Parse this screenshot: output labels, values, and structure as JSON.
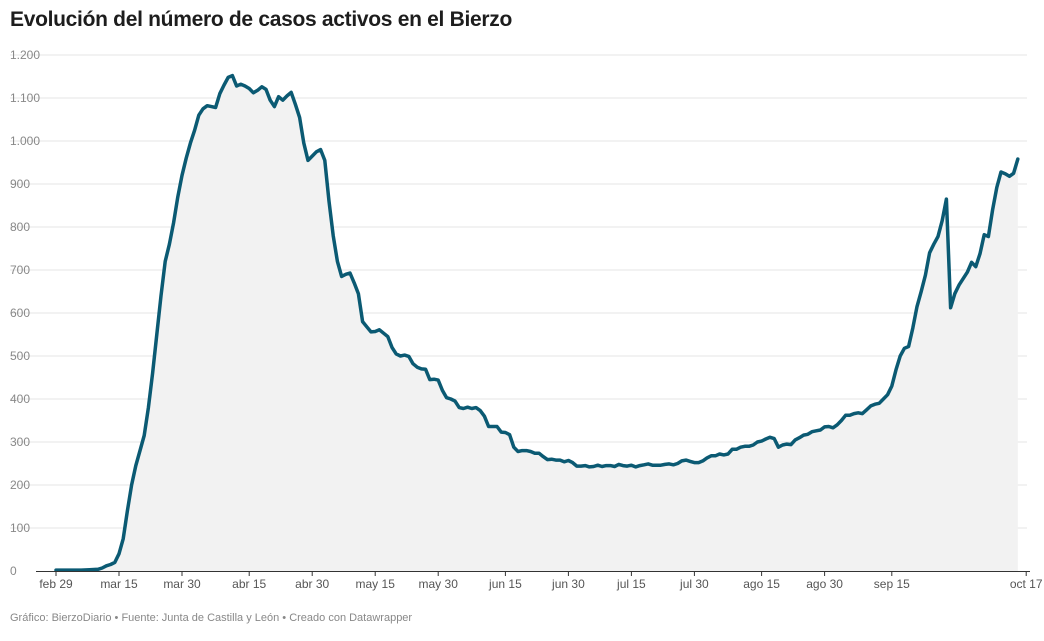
{
  "chart_data": {
    "type": "area",
    "title": "Evolución del número de casos activos en el Bierzo",
    "xlabel": "",
    "ylabel": "",
    "ylim": [
      0,
      1200
    ],
    "y_ticks": [
      0,
      100,
      200,
      300,
      400,
      500,
      600,
      700,
      800,
      900,
      1000,
      1100,
      1200
    ],
    "y_tick_labels": [
      "0",
      "100",
      "200",
      "300",
      "400",
      "500",
      "600",
      "700",
      "800",
      "900",
      "1.000",
      "1.100",
      "1.200"
    ],
    "x_ticks": [
      {
        "day": 0,
        "label": "feb 29"
      },
      {
        "day": 15,
        "label": "mar 15"
      },
      {
        "day": 30,
        "label": "mar 30"
      },
      {
        "day": 46,
        "label": "abr 15"
      },
      {
        "day": 61,
        "label": "abr 30"
      },
      {
        "day": 76,
        "label": "may 15"
      },
      {
        "day": 91,
        "label": "may 30"
      },
      {
        "day": 107,
        "label": "jun 15"
      },
      {
        "day": 122,
        "label": "jun 30"
      },
      {
        "day": 137,
        "label": "jul 15"
      },
      {
        "day": 152,
        "label": "jul 30"
      },
      {
        "day": 168,
        "label": "ago 15"
      },
      {
        "day": 183,
        "label": "ago 30"
      },
      {
        "day": 199,
        "label": "sep 15"
      },
      {
        "day": 231,
        "label": "oct 17"
      }
    ],
    "grid": true,
    "line_color": "#0b5a73",
    "area_color": "#f2f2f2",
    "series": [
      {
        "points": [
          [
            0,
            2
          ],
          [
            2,
            2
          ],
          [
            4,
            2
          ],
          [
            6,
            2
          ],
          [
            8,
            3
          ],
          [
            10,
            4
          ],
          [
            11,
            7
          ],
          [
            12,
            12
          ],
          [
            13,
            15
          ],
          [
            14,
            20
          ],
          [
            15,
            40
          ],
          [
            16,
            75
          ],
          [
            17,
            140
          ],
          [
            18,
            200
          ],
          [
            19,
            245
          ],
          [
            20,
            280
          ],
          [
            21,
            315
          ],
          [
            22,
            380
          ],
          [
            23,
            460
          ],
          [
            24,
            550
          ],
          [
            25,
            640
          ],
          [
            26,
            720
          ],
          [
            27,
            760
          ],
          [
            28,
            810
          ],
          [
            29,
            870
          ],
          [
            30,
            920
          ],
          [
            31,
            960
          ],
          [
            32,
            995
          ],
          [
            33,
            1025
          ],
          [
            34,
            1060
          ],
          [
            35,
            1075
          ],
          [
            36,
            1082
          ],
          [
            37,
            1080
          ],
          [
            38,
            1078
          ],
          [
            39,
            1110
          ],
          [
            40,
            1130
          ],
          [
            41,
            1148
          ],
          [
            42,
            1152
          ],
          [
            43,
            1128
          ],
          [
            44,
            1132
          ],
          [
            45,
            1128
          ],
          [
            46,
            1122
          ],
          [
            47,
            1112
          ],
          [
            48,
            1118
          ],
          [
            49,
            1126
          ],
          [
            50,
            1120
          ],
          [
            51,
            1095
          ],
          [
            52,
            1080
          ],
          [
            53,
            1103
          ],
          [
            54,
            1095
          ],
          [
            55,
            1105
          ],
          [
            56,
            1113
          ],
          [
            57,
            1085
          ],
          [
            58,
            1055
          ],
          [
            59,
            995
          ],
          [
            60,
            955
          ],
          [
            61,
            965
          ],
          [
            62,
            975
          ],
          [
            63,
            980
          ],
          [
            64,
            955
          ],
          [
            65,
            860
          ],
          [
            66,
            780
          ],
          [
            67,
            720
          ],
          [
            68,
            685
          ],
          [
            69,
            690
          ],
          [
            70,
            693
          ],
          [
            71,
            670
          ],
          [
            72,
            645
          ],
          [
            73,
            580
          ],
          [
            74,
            568
          ],
          [
            75,
            556
          ],
          [
            76,
            557
          ],
          [
            77,
            561
          ],
          [
            78,
            553
          ],
          [
            79,
            545
          ],
          [
            80,
            520
          ],
          [
            81,
            505
          ],
          [
            82,
            500
          ],
          [
            83,
            502
          ],
          [
            84,
            499
          ],
          [
            85,
            482
          ],
          [
            86,
            474
          ],
          [
            87,
            470
          ],
          [
            88,
            469
          ],
          [
            89,
            445
          ],
          [
            90,
            446
          ],
          [
            91,
            444
          ],
          [
            92,
            420
          ],
          [
            93,
            403
          ],
          [
            94,
            400
          ],
          [
            95,
            395
          ],
          [
            96,
            380
          ],
          [
            97,
            378
          ],
          [
            98,
            381
          ],
          [
            99,
            378
          ],
          [
            100,
            380
          ],
          [
            101,
            373
          ],
          [
            102,
            360
          ],
          [
            103,
            336
          ],
          [
            104,
            336
          ],
          [
            105,
            336
          ],
          [
            106,
            323
          ],
          [
            107,
            322
          ],
          [
            108,
            317
          ],
          [
            109,
            288
          ],
          [
            110,
            278
          ],
          [
            111,
            280
          ],
          [
            112,
            280
          ],
          [
            113,
            278
          ],
          [
            114,
            274
          ],
          [
            115,
            274
          ],
          [
            116,
            266
          ],
          [
            117,
            259
          ],
          [
            118,
            260
          ],
          [
            119,
            258
          ],
          [
            120,
            258
          ],
          [
            121,
            254
          ],
          [
            122,
            257
          ],
          [
            123,
            252
          ],
          [
            124,
            244
          ],
          [
            125,
            244
          ],
          [
            126,
            245
          ],
          [
            127,
            242
          ],
          [
            128,
            243
          ],
          [
            129,
            246
          ],
          [
            130,
            243
          ],
          [
            131,
            245
          ],
          [
            132,
            245
          ],
          [
            133,
            243
          ],
          [
            134,
            248
          ],
          [
            135,
            245
          ],
          [
            136,
            244
          ],
          [
            137,
            246
          ],
          [
            138,
            242
          ],
          [
            139,
            245
          ],
          [
            140,
            247
          ],
          [
            141,
            249
          ],
          [
            142,
            246
          ],
          [
            143,
            246
          ],
          [
            144,
            246
          ],
          [
            145,
            248
          ],
          [
            146,
            249
          ],
          [
            147,
            247
          ],
          [
            148,
            250
          ],
          [
            149,
            256
          ],
          [
            150,
            258
          ],
          [
            151,
            255
          ],
          [
            152,
            252
          ],
          [
            153,
            252
          ],
          [
            154,
            256
          ],
          [
            155,
            263
          ],
          [
            156,
            268
          ],
          [
            157,
            268
          ],
          [
            158,
            272
          ],
          [
            159,
            270
          ],
          [
            160,
            272
          ],
          [
            161,
            283
          ],
          [
            162,
            283
          ],
          [
            163,
            288
          ],
          [
            164,
            290
          ],
          [
            165,
            290
          ],
          [
            166,
            293
          ],
          [
            167,
            300
          ],
          [
            168,
            302
          ],
          [
            169,
            307
          ],
          [
            170,
            311
          ],
          [
            171,
            308
          ],
          [
            172,
            288
          ],
          [
            173,
            293
          ],
          [
            174,
            295
          ],
          [
            175,
            294
          ],
          [
            176,
            305
          ],
          [
            177,
            310
          ],
          [
            178,
            316
          ],
          [
            179,
            318
          ],
          [
            180,
            324
          ],
          [
            181,
            326
          ],
          [
            182,
            328
          ],
          [
            183,
            335
          ],
          [
            184,
            336
          ],
          [
            185,
            333
          ],
          [
            186,
            340
          ],
          [
            187,
            350
          ],
          [
            188,
            362
          ],
          [
            189,
            362
          ],
          [
            190,
            366
          ],
          [
            191,
            368
          ],
          [
            192,
            366
          ],
          [
            193,
            375
          ],
          [
            194,
            384
          ],
          [
            195,
            388
          ],
          [
            196,
            390
          ],
          [
            197,
            400
          ],
          [
            198,
            410
          ],
          [
            199,
            430
          ],
          [
            200,
            468
          ],
          [
            201,
            500
          ],
          [
            202,
            518
          ],
          [
            203,
            522
          ],
          [
            204,
            565
          ],
          [
            205,
            615
          ],
          [
            206,
            650
          ],
          [
            207,
            688
          ],
          [
            208,
            740
          ],
          [
            209,
            760
          ],
          [
            210,
            778
          ],
          [
            211,
            815
          ],
          [
            212,
            865
          ],
          [
            213,
            612
          ],
          [
            214,
            645
          ],
          [
            215,
            665
          ],
          [
            216,
            680
          ],
          [
            217,
            695
          ],
          [
            218,
            718
          ],
          [
            219,
            708
          ],
          [
            220,
            738
          ],
          [
            221,
            782
          ],
          [
            222,
            778
          ],
          [
            223,
            840
          ],
          [
            224,
            892
          ],
          [
            225,
            928
          ],
          [
            226,
            924
          ],
          [
            227,
            918
          ],
          [
            228,
            925
          ],
          [
            229,
            958
          ]
        ]
      }
    ]
  },
  "footer": {
    "credit": "Gráfico: BierzoDiario",
    "sep1": " • ",
    "source": "Fuente: Junta de Castilla y León",
    "sep2": " • ",
    "tool": "Creado con Datawrapper"
  }
}
